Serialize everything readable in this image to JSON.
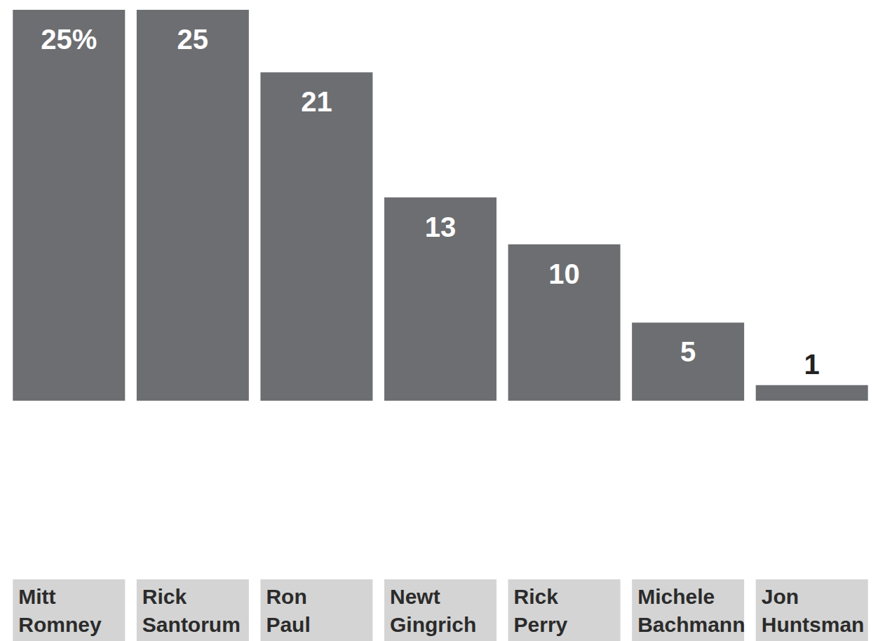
{
  "chart_data": {
    "type": "bar",
    "categories": [
      "Mitt Romney",
      "Rick Santorum",
      "Ron Paul",
      "Newt Gingrich",
      "Rick Perry",
      "Michele Bachmann",
      "Jon Huntsman"
    ],
    "values": [
      25,
      25,
      21,
      13,
      10,
      5,
      1
    ],
    "value_labels": [
      "25%",
      "25",
      "21",
      "13",
      "10",
      "5",
      "1"
    ],
    "color": "#6d6e71",
    "ylim": [
      0,
      25
    ],
    "grid": false,
    "data_labels": true,
    "tick_labels": "x"
  }
}
